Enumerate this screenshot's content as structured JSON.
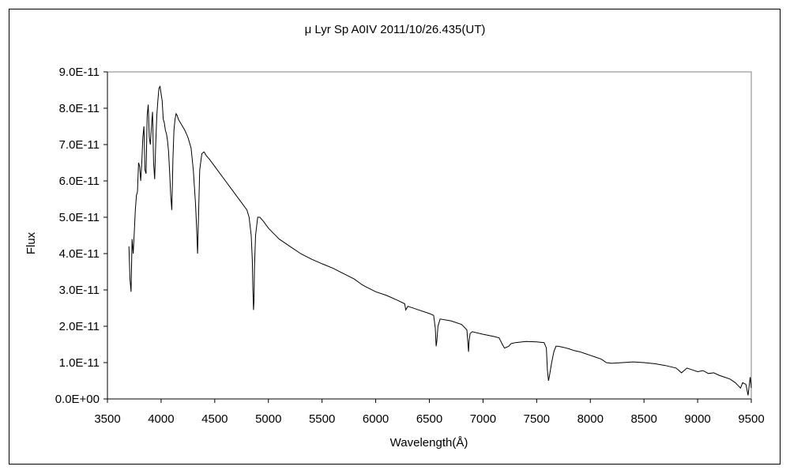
{
  "chart_data": {
    "type": "line",
    "title": "μ Lyr   Sp A0IV   2011/10/26.435(UT)",
    "xlabel": "Wavelength(Å)",
    "ylabel": "Flux",
    "xlim": [
      3500,
      9500
    ],
    "ylim": [
      0,
      9e-11
    ],
    "grid": false,
    "legend": "none",
    "line_color": "#000000",
    "x_ticks": [
      {
        "value": 3500,
        "label": "3500"
      },
      {
        "value": 4000,
        "label": "4000"
      },
      {
        "value": 4500,
        "label": "4500"
      },
      {
        "value": 5000,
        "label": "5000"
      },
      {
        "value": 5500,
        "label": "5500"
      },
      {
        "value": 6000,
        "label": "6000"
      },
      {
        "value": 6500,
        "label": "6500"
      },
      {
        "value": 7000,
        "label": "7000"
      },
      {
        "value": 7500,
        "label": "7500"
      },
      {
        "value": 8000,
        "label": "8000"
      },
      {
        "value": 8500,
        "label": "8500"
      },
      {
        "value": 9000,
        "label": "9000"
      },
      {
        "value": 9500,
        "label": "9500"
      }
    ],
    "y_ticks": [
      {
        "value": 0,
        "label": "0.0E+00"
      },
      {
        "value": 1e-11,
        "label": "1.0E-11"
      },
      {
        "value": 2e-11,
        "label": "2.0E-11"
      },
      {
        "value": 3e-11,
        "label": "3.0E-11"
      },
      {
        "value": 4e-11,
        "label": "4.0E-11"
      },
      {
        "value": 5e-11,
        "label": "5.0E-11"
      },
      {
        "value": 6e-11,
        "label": "6.0E-11"
      },
      {
        "value": 7e-11,
        "label": "7.0E-11"
      },
      {
        "value": 8e-11,
        "label": "8.0E-11"
      },
      {
        "value": 9e-11,
        "label": "9.0E-11"
      }
    ],
    "series": [
      {
        "x": [
          3700,
          3710,
          3720,
          3730,
          3740,
          3750,
          3760,
          3770,
          3780,
          3790,
          3800,
          3810,
          3820,
          3830,
          3840,
          3850,
          3860,
          3870,
          3880,
          3890,
          3900,
          3910,
          3920,
          3930,
          3940,
          3950,
          3960,
          3970,
          3980,
          3990,
          4000,
          4010,
          4020,
          4030,
          4040,
          4050,
          4060,
          4070,
          4080,
          4090,
          4100,
          4110,
          4120,
          4130,
          4140,
          4150,
          4160,
          4170,
          4180,
          4200,
          4220,
          4250,
          4280,
          4300,
          4320,
          4330,
          4340,
          4350,
          4360,
          4380,
          4400,
          4420,
          4450,
          4500,
          4550,
          4600,
          4650,
          4700,
          4750,
          4800,
          4820,
          4840,
          4850,
          4855,
          4861,
          4866,
          4870,
          4880,
          4900,
          4920,
          4950,
          5000,
          5050,
          5100,
          5150,
          5200,
          5300,
          5400,
          5500,
          5600,
          5700,
          5800,
          5870,
          5900,
          6000,
          6100,
          6200,
          6270,
          6280,
          6300,
          6400,
          6500,
          6540,
          6555,
          6563,
          6570,
          6580,
          6600,
          6700,
          6800,
          6850,
          6865,
          6870,
          6880,
          6900,
          7000,
          7100,
          7150,
          7180,
          7200,
          7240,
          7260,
          7300,
          7400,
          7500,
          7570,
          7590,
          7600,
          7610,
          7620,
          7640,
          7660,
          7680,
          7700,
          7750,
          7800,
          7850,
          7900,
          7950,
          8000,
          8050,
          8100,
          8150,
          8200,
          8300,
          8400,
          8500,
          8600,
          8700,
          8800,
          8850,
          8900,
          8950,
          9000,
          9050,
          9100,
          9150,
          9200,
          9250,
          9300,
          9350,
          9400,
          9420,
          9450,
          9470,
          9490,
          9500
        ],
        "y": [
          4.2e-11,
          3.3e-11,
          2.95e-11,
          4.4e-11,
          4e-11,
          4.6e-11,
          5.2e-11,
          5.6e-11,
          5.7e-11,
          6.5e-11,
          6.4e-11,
          6e-11,
          6.5e-11,
          7.2e-11,
          7.5e-11,
          6.3e-11,
          6.2e-11,
          7.8e-11,
          8.1e-11,
          7.2e-11,
          7e-11,
          7.5e-11,
          7.9e-11,
          6.5e-11,
          6.05e-11,
          7e-11,
          7.8e-11,
          8.2e-11,
          8.55e-11,
          8.6e-11,
          8.4e-11,
          8.2e-11,
          7.7e-11,
          7.6e-11,
          7.4e-11,
          7.3e-11,
          7.1e-11,
          6.8e-11,
          6.2e-11,
          5.6e-11,
          5.2e-11,
          6.6e-11,
          7.4e-11,
          7.7e-11,
          7.85e-11,
          7.8e-11,
          7.7e-11,
          7.65e-11,
          7.6e-11,
          7.5e-11,
          7.4e-11,
          7.2e-11,
          6.9e-11,
          6.3e-11,
          5.4e-11,
          4.8e-11,
          4e-11,
          5.2e-11,
          6.3e-11,
          6.75e-11,
          6.8e-11,
          6.7e-11,
          6.6e-11,
          6.4e-11,
          6.2e-11,
          6e-11,
          5.8e-11,
          5.6e-11,
          5.4e-11,
          5.2e-11,
          5e-11,
          4.5e-11,
          3.8e-11,
          3e-11,
          2.45e-11,
          2.7e-11,
          3.6e-11,
          4.5e-11,
          5e-11,
          5e-11,
          4.9e-11,
          4.7e-11,
          4.55e-11,
          4.4e-11,
          4.3e-11,
          4.2e-11,
          4e-11,
          3.85e-11,
          3.72e-11,
          3.6e-11,
          3.45e-11,
          3.3e-11,
          3.15e-11,
          3.1e-11,
          2.95e-11,
          2.85e-11,
          2.72e-11,
          2.62e-11,
          2.45e-11,
          2.55e-11,
          2.45e-11,
          2.35e-11,
          2.3e-11,
          1.95e-11,
          1.45e-11,
          1.6e-11,
          2e-11,
          2.2e-11,
          2.15e-11,
          2.05e-11,
          1.9e-11,
          1.3e-11,
          1.6e-11,
          1.8e-11,
          1.85e-11,
          1.78e-11,
          1.72e-11,
          1.68e-11,
          1.5e-11,
          1.4e-11,
          1.45e-11,
          1.52e-11,
          1.55e-11,
          1.58e-11,
          1.57e-11,
          1.55e-11,
          1.4e-11,
          8e-12,
          5e-12,
          6.5e-12,
          1e-11,
          1.3e-11,
          1.45e-11,
          1.45e-11,
          1.42e-11,
          1.38e-11,
          1.33e-11,
          1.3e-11,
          1.25e-11,
          1.2e-11,
          1.15e-11,
          1.1e-11,
          1e-11,
          9.8e-12,
          1e-11,
          1.02e-11,
          1e-11,
          9.7e-12,
          9.2e-12,
          8.5e-12,
          7.2e-12,
          8.5e-12,
          8e-12,
          7.5e-12,
          7.8e-12,
          7e-12,
          7.2e-12,
          6.5e-12,
          6e-12,
          5.5e-12,
          4.5e-12,
          3e-12,
          4.5e-12,
          4e-12,
          1e-12,
          6e-12,
          3e-12
        ]
      }
    ]
  }
}
